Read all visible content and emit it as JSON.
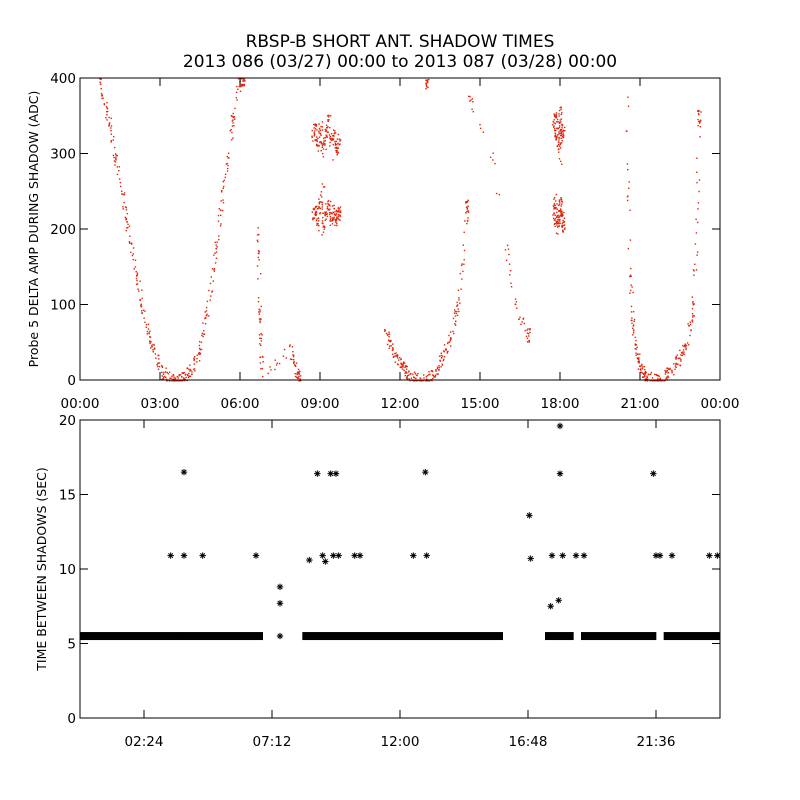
{
  "header": {
    "title_line1": "RBSP-B SHORT ANT. SHADOW TIMES",
    "title_line2": "2013 086 (03/27) 00:00 to 2013 087 (03/28) 00:00"
  },
  "chart_data": [
    {
      "type": "scatter",
      "ylabel": "Probe 5 DELTA AMP DURING SHADOW (ADC)",
      "xlabel": "",
      "x_unit": "hours",
      "xlim": [
        0,
        24
      ],
      "ylim": [
        0,
        400
      ],
      "xticks": [
        0,
        3,
        6,
        9,
        12,
        15,
        18,
        21,
        24
      ],
      "xtick_labels": [
        "00:00",
        "03:00",
        "06:00",
        "09:00",
        "12:00",
        "15:00",
        "18:00",
        "21:00",
        "00:00"
      ],
      "yticks": [
        0,
        100,
        200,
        300,
        400
      ],
      "ytick_labels": [
        "0",
        "100",
        "200",
        "300",
        "400"
      ],
      "marker_color": "#e0230a",
      "series": [
        {
          "x": [
            0.7,
            0.9,
            1.1,
            1.3,
            1.5,
            1.7,
            1.9,
            2.1,
            2.3,
            2.5,
            2.7,
            2.9,
            3.1,
            3.3,
            3.5,
            3.6,
            3.8,
            3.95,
            4.1,
            4.3,
            4.5,
            4.7,
            4.9,
            5.1,
            5.3,
            5.5,
            5.7,
            5.9,
            6.1
          ],
          "y": [
            400,
            370,
            340,
            300,
            260,
            220,
            180,
            140,
            100,
            70,
            45,
            25,
            10,
            3,
            0,
            0,
            2,
            5,
            12,
            25,
            45,
            80,
            130,
            180,
            240,
            290,
            340,
            390,
            400
          ]
        },
        {
          "x": [
            6.65,
            6.7,
            6.75,
            6.8,
            7.9,
            8.0,
            8.2
          ],
          "y": [
            210,
            120,
            60,
            10,
            40,
            20,
            5
          ]
        },
        {
          "x": [
            8.7,
            8.8,
            8.9,
            9.0,
            9.1,
            9.2,
            9.3,
            9.4,
            9.5,
            9.6,
            9.7,
            8.7,
            8.8,
            8.9,
            9.0,
            9.1,
            9.2,
            9.3,
            9.4,
            9.5,
            9.6,
            9.7
          ],
          "y": [
            320,
            335,
            310,
            340,
            300,
            325,
            350,
            315,
            330,
            305,
            320,
            215,
            230,
            205,
            240,
            200,
            225,
            235,
            210,
            228,
            212,
            222
          ]
        },
        {
          "x": [
            11.4,
            11.6,
            11.8,
            12.0,
            12.1,
            12.2,
            12.4,
            12.6,
            12.9,
            13.1,
            13.3,
            13.5,
            13.7,
            13.9,
            14.1,
            14.3,
            14.5
          ],
          "y": [
            70,
            50,
            35,
            22,
            15,
            10,
            5,
            2,
            0,
            5,
            12,
            25,
            40,
            60,
            90,
            140,
            230
          ]
        },
        {
          "x": [
            13.0,
            14.5,
            15.5,
            16.3,
            16.8
          ],
          "y": [
            390,
            380,
            290,
            100,
            60
          ]
        },
        {
          "x": [
            17.75,
            17.8,
            17.85,
            17.9,
            17.95,
            18.0,
            18.05,
            18.1,
            17.75,
            17.8,
            17.85,
            17.9,
            17.95,
            18.0,
            18.05,
            18.1
          ],
          "y": [
            330,
            350,
            310,
            340,
            300,
            360,
            320,
            335,
            215,
            240,
            200,
            230,
            210,
            245,
            220,
            205
          ]
        },
        {
          "x": [
            20.5,
            20.6,
            20.7,
            20.8,
            20.9,
            21.0,
            21.1,
            21.2,
            21.4,
            21.6,
            21.8,
            22.0,
            22.2,
            22.4,
            22.6,
            22.8,
            22.95,
            23.1,
            23.2
          ],
          "y": [
            380,
            150,
            80,
            50,
            30,
            18,
            10,
            5,
            2,
            0,
            3,
            8,
            15,
            25,
            40,
            60,
            90,
            180,
            350
          ]
        }
      ]
    },
    {
      "type": "scatter",
      "ylabel": "TIME BETWEEN SHADOWS (SEC)",
      "xlabel": "",
      "x_unit": "hours",
      "xlim": [
        0,
        24
      ],
      "ylim": [
        0,
        20
      ],
      "xticks": [
        2.4,
        7.2,
        12.0,
        16.8,
        21.6
      ],
      "xtick_labels": [
        "02:24",
        "07:12",
        "12:00",
        "16:48",
        "21:36"
      ],
      "yticks": [
        0,
        5,
        10,
        15,
        20
      ],
      "ytick_labels": [
        "0",
        "5",
        "10",
        "15",
        "20"
      ],
      "marker": "asterisk",
      "marker_color": "#000000",
      "baseline_segments": [
        {
          "x_start": 0.1,
          "x_end": 3.6,
          "y": 5.5
        },
        {
          "x_start": 3.8,
          "x_end": 6.75,
          "y": 5.5
        },
        {
          "x_start": 8.45,
          "x_end": 15.75,
          "y": 5.5
        },
        {
          "x_start": 17.55,
          "x_end": 18.4,
          "y": 5.5
        },
        {
          "x_start": 18.9,
          "x_end": 21.5,
          "y": 5.5
        },
        {
          "x_start": 22.0,
          "x_end": 23.9,
          "y": 5.5
        }
      ],
      "points": {
        "x": [
          3.4,
          3.9,
          3.9,
          4.6,
          6.6,
          7.5,
          7.5,
          7.5,
          8.6,
          8.9,
          9.1,
          9.2,
          9.4,
          9.5,
          9.6,
          9.7,
          10.3,
          10.5,
          12.5,
          12.95,
          13.0,
          16.85,
          16.9,
          17.65,
          17.7,
          17.95,
          18.0,
          18.0,
          18.1,
          18.6,
          18.9,
          21.5,
          21.6,
          21.75,
          22.2,
          23.6,
          23.9
        ],
        "y": [
          10.9,
          16.5,
          10.9,
          10.9,
          10.9,
          8.8,
          7.7,
          5.5,
          10.6,
          16.4,
          10.9,
          10.5,
          16.4,
          10.9,
          16.4,
          10.9,
          10.9,
          10.9,
          10.9,
          16.5,
          10.9,
          13.6,
          10.7,
          7.5,
          10.9,
          7.9,
          19.6,
          16.4,
          10.9,
          10.9,
          10.9,
          16.4,
          10.9,
          10.9,
          10.9,
          10.9,
          10.9
        ]
      }
    }
  ]
}
